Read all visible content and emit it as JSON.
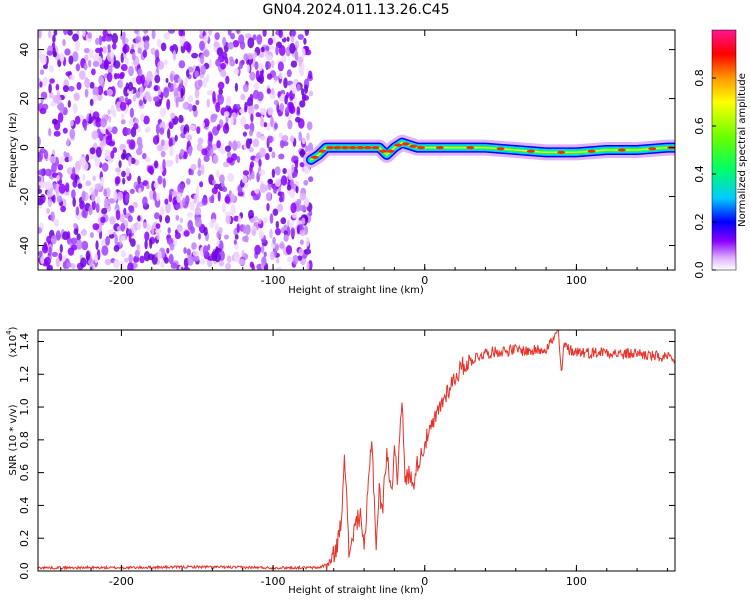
{
  "figure": {
    "title": "GN04.2024.011.13.26.C45"
  },
  "chart_data": [
    {
      "type": "heatmap",
      "xlabel": "Height of straight line (km)",
      "ylabel": "Frequency (Hz)",
      "xlim": [
        -255,
        165
      ],
      "ylim": [
        -50,
        48
      ],
      "xticks": [
        -200,
        -100,
        0,
        100
      ],
      "yticks": [
        -40,
        -20,
        0,
        20,
        40
      ],
      "noise_region_x": [
        -255,
        -75
      ],
      "signal_trace": {
        "x": [
          -75,
          -70,
          -65,
          -60,
          -55,
          -50,
          -45,
          -40,
          -35,
          -30,
          -25,
          -20,
          -15,
          -10,
          -5,
          0,
          20,
          40,
          60,
          80,
          100,
          120,
          140,
          160,
          165
        ],
        "y": [
          -5,
          -3,
          0,
          0,
          0,
          0,
          0,
          0,
          0,
          0,
          -3,
          0,
          2,
          1,
          0,
          0,
          0,
          0,
          -1,
          -2,
          -2,
          -1,
          -1,
          0,
          0
        ]
      },
      "colorbar": {
        "label": "Normalized spectral amplitude",
        "range": [
          0,
          1
        ],
        "ticks": [
          0.0,
          0.2,
          0.4,
          0.6,
          0.8
        ],
        "tick_labels": [
          "0.0",
          "0.2",
          "0.4",
          "0.6",
          "0.8"
        ],
        "colormap": [
          "#ffffff",
          "#e0b0ff",
          "#8a00ff",
          "#0000ff",
          "#00ccff",
          "#00ff66",
          "#66ff00",
          "#ffff00",
          "#ff9900",
          "#ff0000",
          "#ff1493"
        ]
      }
    },
    {
      "type": "line",
      "xlabel": "Height of straight line (km)",
      "ylabel": "SNR (10 * v/v)",
      "y_multiplier": "(x10",
      "y_multiplier_exp": "4",
      "y_multiplier_close": ")",
      "xlim": [
        -255,
        165
      ],
      "ylim": [
        0,
        1.47
      ],
      "xticks": [
        -200,
        -100,
        0,
        100
      ],
      "yticks": [
        0.0,
        0.2,
        0.4,
        0.6,
        0.8,
        1.0,
        1.2,
        1.4
      ],
      "ytick_labels": [
        "0.0",
        "0.2",
        "0.4",
        "0.6",
        "0.8",
        "1.0",
        "1.2",
        "1.4"
      ],
      "series": [
        {
          "color": "#e8322a",
          "x": [
            -255,
            -200,
            -150,
            -100,
            -70,
            -62,
            -58,
            -55,
            -53,
            -50,
            -48,
            -45,
            -42,
            -40,
            -38,
            -35,
            -32,
            -30,
            -28,
            -25,
            -22,
            -20,
            -18,
            -16,
            -15,
            -13,
            -10,
            -8,
            -5,
            -2,
            0,
            5,
            10,
            15,
            20,
            25,
            30,
            35,
            40,
            50,
            60,
            70,
            80,
            87,
            88,
            90,
            92,
            95,
            100,
            110,
            120,
            130,
            140,
            150,
            160,
            165
          ],
          "y": [
            0.02,
            0.02,
            0.025,
            0.02,
            0.02,
            0.05,
            0.15,
            0.3,
            0.76,
            0.1,
            0.2,
            0.3,
            0.35,
            0.1,
            0.4,
            0.83,
            0.15,
            0.5,
            0.35,
            0.75,
            0.45,
            0.78,
            0.55,
            0.98,
            1.02,
            0.55,
            0.6,
            0.52,
            0.65,
            0.72,
            0.78,
            0.88,
            1.0,
            1.1,
            1.18,
            1.25,
            1.28,
            1.31,
            1.33,
            1.34,
            1.35,
            1.34,
            1.36,
            1.44,
            1.48,
            1.2,
            1.38,
            1.35,
            1.34,
            1.33,
            1.34,
            1.32,
            1.33,
            1.31,
            1.3,
            1.27
          ]
        }
      ]
    }
  ]
}
